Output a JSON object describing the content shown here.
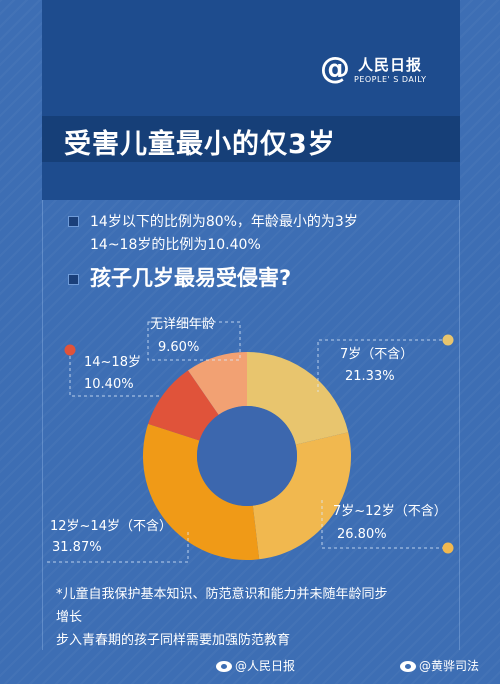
{
  "logo": {
    "name": "人民日报",
    "sub": "PEOPLE' S DAILY"
  },
  "title": "受害儿童最小的仅3岁",
  "info": {
    "line1": "14岁以下的比例为80%，年龄最小的为3岁",
    "line2": "14~18岁的比例为10.40%"
  },
  "question": "孩子几岁最易受侵害?",
  "chart_data": {
    "type": "pie",
    "donut": true,
    "categories": [
      "7岁（不含）",
      "7岁~12岁（不含）",
      "12岁~14岁（不含）",
      "14~18岁",
      "无详细年龄"
    ],
    "values": [
      21.33,
      26.8,
      31.87,
      10.4,
      9.6
    ],
    "value_labels": [
      "21.33%",
      "26.80%",
      "31.87%",
      "10.40%",
      "9.60%"
    ],
    "colors": [
      "#e8c56e",
      "#f1b84f",
      "#f09a17",
      "#e0533a",
      "#f2a173"
    ],
    "center_color": "#3c67ae",
    "title": "",
    "legend": "none"
  },
  "footnotes": {
    "line1": "*儿童自我保护基本知识、防范意识和能力并未随年龄同步",
    "line2": "增长",
    "line3": "步入青春期的孩子同样需要加强防范教育"
  },
  "footer": {
    "left": "@人民日报",
    "right": "@黄骅司法"
  }
}
